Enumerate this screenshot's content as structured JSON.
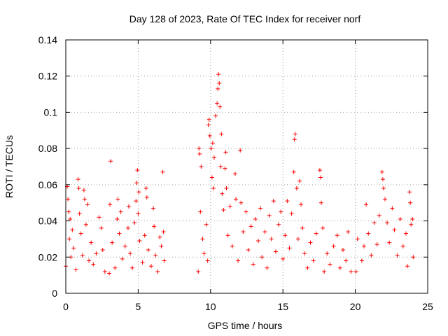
{
  "chart_data": {
    "type": "scatter",
    "title": "Day 128 of 2023, Rate Of TEC Index for receiver norf",
    "xlabel": "GPS time / hours",
    "ylabel": "ROTI / TECUs",
    "xlim": [
      0,
      25
    ],
    "ylim": [
      0,
      0.14
    ],
    "grid": true,
    "marker": "+",
    "color": "#ff0000",
    "xticks": [
      {
        "value": 0,
        "label": "0"
      },
      {
        "value": 5,
        "label": "5"
      },
      {
        "value": 10,
        "label": "10"
      },
      {
        "value": 15,
        "label": "15"
      },
      {
        "value": 20,
        "label": "20"
      },
      {
        "value": 25,
        "label": "25"
      }
    ],
    "yticks": [
      {
        "value": 0,
        "label": "0"
      },
      {
        "value": 0.02,
        "label": "0.02"
      },
      {
        "value": 0.04,
        "label": "0.04"
      },
      {
        "value": 0.06,
        "label": "0.06"
      },
      {
        "value": 0.08,
        "label": "0.08"
      },
      {
        "value": 0.1,
        "label": "0.1"
      },
      {
        "value": 0.12,
        "label": "0.12"
      },
      {
        "value": 0.14,
        "label": "0.14"
      }
    ],
    "series": [
      {
        "name": "ROTI",
        "points": [
          [
            0.0,
            0.015
          ],
          [
            0.1,
            0.059
          ],
          [
            0.15,
            0.052
          ],
          [
            0.2,
            0.045
          ],
          [
            0.25,
            0.03
          ],
          [
            0.3,
            0.041
          ],
          [
            0.35,
            0.02
          ],
          [
            0.45,
            0.035
          ],
          [
            0.55,
            0.025
          ],
          [
            0.7,
            0.013
          ],
          [
            0.85,
            0.063
          ],
          [
            0.9,
            0.058
          ],
          [
            0.95,
            0.044
          ],
          [
            1.05,
            0.033
          ],
          [
            1.15,
            0.021
          ],
          [
            1.25,
            0.057
          ],
          [
            1.3,
            0.052
          ],
          [
            1.4,
            0.038
          ],
          [
            1.5,
            0.049
          ],
          [
            1.6,
            0.018
          ],
          [
            1.75,
            0.028
          ],
          [
            1.9,
            0.016
          ],
          [
            2.1,
            0.022
          ],
          [
            2.3,
            0.042
          ],
          [
            2.45,
            0.036
          ],
          [
            2.55,
            0.024
          ],
          [
            2.7,
            0.012
          ],
          [
            3.0,
            0.011
          ],
          [
            3.05,
            0.049
          ],
          [
            3.1,
            0.073
          ],
          [
            3.2,
            0.028
          ],
          [
            3.4,
            0.014
          ],
          [
            3.55,
            0.041
          ],
          [
            3.6,
            0.052
          ],
          [
            3.7,
            0.033
          ],
          [
            3.8,
            0.045
          ],
          [
            3.9,
            0.019
          ],
          [
            4.1,
            0.026
          ],
          [
            4.3,
            0.036
          ],
          [
            4.35,
            0.048
          ],
          [
            4.45,
            0.022
          ],
          [
            4.6,
            0.014
          ],
          [
            4.75,
            0.039
          ],
          [
            4.85,
            0.051
          ],
          [
            4.9,
            0.061
          ],
          [
            4.95,
            0.068
          ],
          [
            5.0,
            0.044
          ],
          [
            5.05,
            0.056
          ],
          [
            5.1,
            0.029
          ],
          [
            5.3,
            0.017
          ],
          [
            5.45,
            0.032
          ],
          [
            5.55,
            0.058
          ],
          [
            5.6,
            0.053
          ],
          [
            5.7,
            0.024
          ],
          [
            5.9,
            0.015
          ],
          [
            6.05,
            0.047
          ],
          [
            6.1,
            0.037
          ],
          [
            6.2,
            0.021
          ],
          [
            6.35,
            0.012
          ],
          [
            6.5,
            0.031
          ],
          [
            6.6,
            0.026
          ],
          [
            6.7,
            0.067
          ],
          [
            6.75,
            0.034
          ],
          [
            6.8,
            0.018
          ],
          [
            9.15,
            0.012
          ],
          [
            9.2,
            0.08
          ],
          [
            9.25,
            0.077
          ],
          [
            9.3,
            0.045
          ],
          [
            9.35,
            0.07
          ],
          [
            9.45,
            0.03
          ],
          [
            9.55,
            0.022
          ],
          [
            9.7,
            0.038
          ],
          [
            9.8,
            0.018
          ],
          [
            9.85,
            0.093
          ],
          [
            9.9,
            0.096
          ],
          [
            9.95,
            0.087
          ],
          [
            10.05,
            0.08
          ],
          [
            10.1,
            0.064
          ],
          [
            10.15,
            0.083
          ],
          [
            10.2,
            0.058
          ],
          [
            10.25,
            0.075
          ],
          [
            10.35,
            0.098
          ],
          [
            10.45,
            0.105
          ],
          [
            10.5,
            0.113
          ],
          [
            10.55,
            0.121
          ],
          [
            10.6,
            0.116
          ],
          [
            10.65,
            0.103
          ],
          [
            10.7,
            0.07
          ],
          [
            10.75,
            0.088
          ],
          [
            10.8,
            0.055
          ],
          [
            10.9,
            0.046
          ],
          [
            11.0,
            0.069
          ],
          [
            11.05,
            0.078
          ],
          [
            11.1,
            0.058
          ],
          [
            11.2,
            0.032
          ],
          [
            11.35,
            0.048
          ],
          [
            11.5,
            0.026
          ],
          [
            11.7,
            0.066
          ],
          [
            11.75,
            0.052
          ],
          [
            11.9,
            0.018
          ],
          [
            12.05,
            0.079
          ],
          [
            12.1,
            0.05
          ],
          [
            12.25,
            0.034
          ],
          [
            12.45,
            0.045
          ],
          [
            12.6,
            0.024
          ],
          [
            12.8,
            0.037
          ],
          [
            12.95,
            0.016
          ],
          [
            13.1,
            0.041
          ],
          [
            13.3,
            0.029
          ],
          [
            13.45,
            0.047
          ],
          [
            13.55,
            0.02
          ],
          [
            13.75,
            0.034
          ],
          [
            13.9,
            0.014
          ],
          [
            14.05,
            0.043
          ],
          [
            14.2,
            0.03
          ],
          [
            14.35,
            0.051
          ],
          [
            14.5,
            0.023
          ],
          [
            14.7,
            0.038
          ],
          [
            14.85,
            0.045
          ],
          [
            15.0,
            0.019
          ],
          [
            15.15,
            0.032
          ],
          [
            15.3,
            0.051
          ],
          [
            15.45,
            0.025
          ],
          [
            15.6,
            0.044
          ],
          [
            15.75,
            0.067
          ],
          [
            15.8,
            0.085
          ],
          [
            15.85,
            0.088
          ],
          [
            15.95,
            0.058
          ],
          [
            16.05,
            0.03
          ],
          [
            16.15,
            0.062
          ],
          [
            16.25,
            0.049
          ],
          [
            16.35,
            0.036
          ],
          [
            16.5,
            0.022
          ],
          [
            16.7,
            0.014
          ],
          [
            16.9,
            0.028
          ],
          [
            17.1,
            0.018
          ],
          [
            17.3,
            0.033
          ],
          [
            17.55,
            0.068
          ],
          [
            17.6,
            0.064
          ],
          [
            17.65,
            0.05
          ],
          [
            17.75,
            0.036
          ],
          [
            17.85,
            0.012
          ],
          [
            18.05,
            0.022
          ],
          [
            18.25,
            0.016
          ],
          [
            18.5,
            0.026
          ],
          [
            18.75,
            0.032
          ],
          [
            18.95,
            0.014
          ],
          [
            19.15,
            0.024
          ],
          [
            19.35,
            0.018
          ],
          [
            19.5,
            0.034
          ],
          [
            19.7,
            0.012
          ],
          [
            20.05,
            0.012
          ],
          [
            20.15,
            0.03
          ],
          [
            20.45,
            0.018
          ],
          [
            20.6,
            0.026
          ],
          [
            20.75,
            0.049
          ],
          [
            20.9,
            0.033
          ],
          [
            21.1,
            0.021
          ],
          [
            21.3,
            0.039
          ],
          [
            21.5,
            0.027
          ],
          [
            21.65,
            0.043
          ],
          [
            21.85,
            0.067
          ],
          [
            21.9,
            0.063
          ],
          [
            21.95,
            0.058
          ],
          [
            22.05,
            0.052
          ],
          [
            22.2,
            0.039
          ],
          [
            22.35,
            0.028
          ],
          [
            22.55,
            0.047
          ],
          [
            22.7,
            0.035
          ],
          [
            22.9,
            0.021
          ],
          [
            23.1,
            0.041
          ],
          [
            23.3,
            0.026
          ],
          [
            23.5,
            0.033
          ],
          [
            23.6,
            0.015
          ],
          [
            23.75,
            0.056
          ],
          [
            23.8,
            0.05
          ],
          [
            23.85,
            0.038
          ],
          [
            23.95,
            0.041
          ],
          [
            24.0,
            0.02
          ]
        ]
      }
    ]
  }
}
